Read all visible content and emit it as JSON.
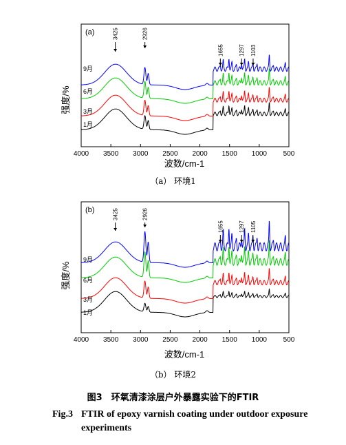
{
  "chart_data": [
    {
      "type": "line",
      "panel_label": "(a)",
      "xlabel": "波数/cm-1",
      "ylabel": "强度/%",
      "xlim": [
        4000,
        500
      ],
      "xticks": [
        "4000",
        "3500",
        "3000",
        "2500",
        "2000",
        "1500",
        "1000",
        "500"
      ],
      "caption": "（a） 环境1",
      "series": [
        {
          "name": "1月",
          "color": "#000000"
        },
        {
          "name": "3月",
          "color": "#ff0000"
        },
        {
          "name": "6月",
          "color": "#00cc00"
        },
        {
          "name": "9月",
          "color": "#0000ff"
        }
      ],
      "annotations": [
        "3425",
        "2926",
        "1655",
        "1297",
        "1103"
      ]
    },
    {
      "type": "line",
      "panel_label": "(b)",
      "xlabel": "波数/cm-1",
      "ylabel": "强度/%",
      "xlim": [
        4000,
        500
      ],
      "xticks": [
        "4000",
        "3500",
        "3000",
        "2500",
        "2000",
        "1500",
        "1000",
        "500"
      ],
      "caption": "（b） 环境2",
      "series": [
        {
          "name": "1月",
          "color": "#000000"
        },
        {
          "name": "3月",
          "color": "#ff0000"
        },
        {
          "name": "6月",
          "color": "#00cc00"
        },
        {
          "name": "9月",
          "color": "#0000ff"
        }
      ],
      "annotations": [
        "3425",
        "2926",
        "1655",
        "1297",
        "1105"
      ]
    }
  ],
  "figure": {
    "title_cn": "图3　环氧清漆涂层户外暴露实验下的FTIR",
    "label_en": "Fig.3",
    "title_en": "FTIR of epoxy varnish coating under outdoor exposure experiments"
  }
}
